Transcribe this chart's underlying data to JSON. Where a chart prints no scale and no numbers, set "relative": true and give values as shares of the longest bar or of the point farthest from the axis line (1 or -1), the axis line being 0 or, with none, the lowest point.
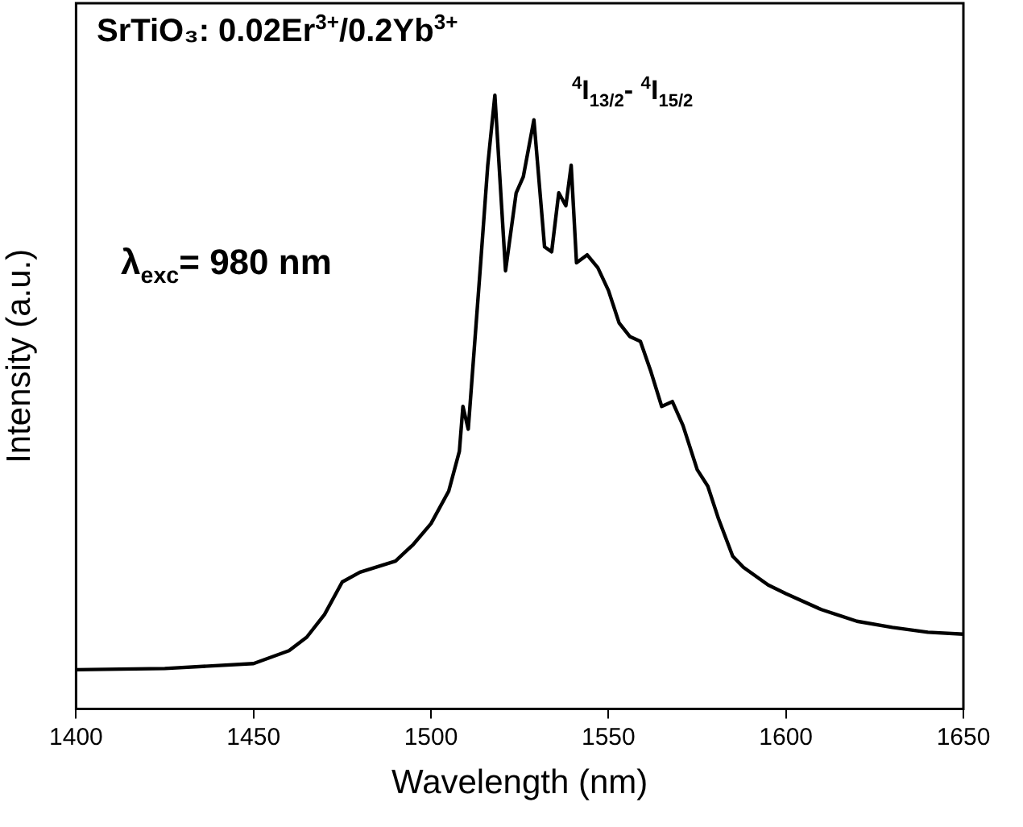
{
  "chart_data": {
    "type": "line",
    "xlabel": "Wavelength (nm)",
    "ylabel": "Intensity (a.u.)",
    "relative": true,
    "xlim": [
      1400,
      1650
    ],
    "xticks": [
      1400,
      1450,
      1500,
      1550,
      1600,
      1650
    ],
    "grid": false,
    "legend": false,
    "marker": "none",
    "line_style": "solid",
    "annotations": [
      "SrTiO₃: 0.02Er$^{3+}$/0.2Yb$^{3+}$",
      "$^{4}$I$_{13/2}$- $^{4}$I$_{15/2}$",
      "λ$_{exc}$= 980 nm"
    ],
    "series": [
      {
        "color": "#000000",
        "x": [
          1400,
          1425,
          1450,
          1460,
          1465,
          1470,
          1475,
          1480,
          1490,
          1495,
          1500,
          1505,
          1508,
          1509,
          1510.5,
          1514,
          1516,
          1518,
          1521,
          1524,
          1526,
          1529,
          1532,
          1534,
          1536,
          1538,
          1539.5,
          1541,
          1544,
          1547,
          1550,
          1553,
          1556,
          1559,
          1562,
          1565,
          1568,
          1571,
          1575,
          1578,
          1581,
          1585,
          1588,
          1595,
          1600,
          1610,
          1620,
          1630,
          1640,
          1650
        ],
        "values": [
          0.064,
          0.066,
          0.074,
          0.095,
          0.117,
          0.154,
          0.207,
          0.223,
          0.241,
          0.268,
          0.302,
          0.355,
          0.42,
          0.493,
          0.456,
          0.727,
          0.886,
          1,
          0.714,
          0.841,
          0.867,
          0.96,
          0.753,
          0.745,
          0.841,
          0.82,
          0.886,
          0.727,
          0.74,
          0.719,
          0.682,
          0.629,
          0.607,
          0.599,
          0.549,
          0.493,
          0.501,
          0.462,
          0.39,
          0.363,
          0.31,
          0.249,
          0.231,
          0.202,
          0.188,
          0.162,
          0.143,
          0.133,
          0.125,
          0.122
        ]
      }
    ]
  }
}
